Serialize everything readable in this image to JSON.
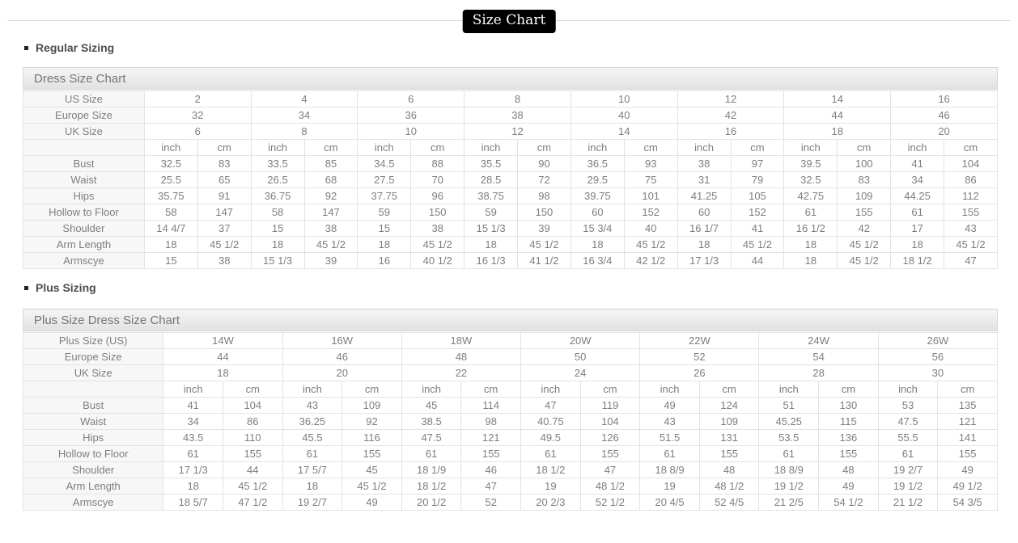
{
  "page_title": "Size Chart",
  "colors": {
    "badge_bg": "#000000",
    "badge_text": "#ffffff",
    "line_color": "#d9d9d9",
    "border_color": "#e3e3e3",
    "panel_top": "#f5f5f5",
    "panel_bottom": "#e2e2e2",
    "panel_text": "#757575",
    "cell_text": "#7e7e7e",
    "label_bg": "#f7f7f7",
    "heading_text": "#4d4d4d"
  },
  "sections": [
    {
      "heading": "Regular Sizing",
      "panel_title": "Dress Size Chart",
      "table": {
        "size_rows": [
          {
            "label": "US Size",
            "values": [
              "2",
              "4",
              "6",
              "8",
              "10",
              "12",
              "14",
              "16"
            ]
          },
          {
            "label": "Europe Size",
            "values": [
              "32",
              "34",
              "36",
              "38",
              "40",
              "42",
              "44",
              "46"
            ]
          },
          {
            "label": "UK Size",
            "values": [
              "6",
              "8",
              "10",
              "12",
              "14",
              "16",
              "18",
              "20"
            ]
          }
        ],
        "unit_labels": [
          "inch",
          "cm"
        ],
        "measurement_rows": [
          {
            "label": "Bust",
            "values": [
              "32.5",
              "83",
              "33.5",
              "85",
              "34.5",
              "88",
              "35.5",
              "90",
              "36.5",
              "93",
              "38",
              "97",
              "39.5",
              "100",
              "41",
              "104"
            ]
          },
          {
            "label": "Waist",
            "values": [
              "25.5",
              "65",
              "26.5",
              "68",
              "27.5",
              "70",
              "28.5",
              "72",
              "29.5",
              "75",
              "31",
              "79",
              "32.5",
              "83",
              "34",
              "86"
            ]
          },
          {
            "label": "Hips",
            "values": [
              "35.75",
              "91",
              "36.75",
              "92",
              "37.75",
              "96",
              "38.75",
              "98",
              "39.75",
              "101",
              "41.25",
              "105",
              "42.75",
              "109",
              "44.25",
              "112"
            ]
          },
          {
            "label": "Hollow to Floor",
            "values": [
              "58",
              "147",
              "58",
              "147",
              "59",
              "150",
              "59",
              "150",
              "60",
              "152",
              "60",
              "152",
              "61",
              "155",
              "61",
              "155"
            ]
          },
          {
            "label": "Shoulder",
            "values": [
              "14 4/7",
              "37",
              "15",
              "38",
              "15",
              "38",
              "15 1/3",
              "39",
              "15 3/4",
              "40",
              "16 1/7",
              "41",
              "16 1/2",
              "42",
              "17",
              "43"
            ]
          },
          {
            "label": "Arm Length",
            "values": [
              "18",
              "45 1/2",
              "18",
              "45 1/2",
              "18",
              "45 1/2",
              "18",
              "45 1/2",
              "18",
              "45 1/2",
              "18",
              "45 1/2",
              "18",
              "45 1/2",
              "18",
              "45 1/2"
            ]
          },
          {
            "label": "Armscye",
            "values": [
              "15",
              "38",
              "15 1/3",
              "39",
              "16",
              "40 1/2",
              "16 1/3",
              "41 1/2",
              "16 3/4",
              "42 1/2",
              "17 1/3",
              "44",
              "18",
              "45 1/2",
              "18 1/2",
              "47"
            ]
          }
        ]
      }
    },
    {
      "heading": "Plus Sizing",
      "panel_title": "Plus Size Dress Size Chart",
      "table": {
        "size_rows": [
          {
            "label": "Plus Size (US)",
            "values": [
              "14W",
              "16W",
              "18W",
              "20W",
              "22W",
              "24W",
              "26W"
            ]
          },
          {
            "label": "Europe Size",
            "values": [
              "44",
              "46",
              "48",
              "50",
              "52",
              "54",
              "56"
            ]
          },
          {
            "label": "UK Size",
            "values": [
              "18",
              "20",
              "22",
              "24",
              "26",
              "28",
              "30"
            ]
          }
        ],
        "unit_labels": [
          "inch",
          "cm"
        ],
        "measurement_rows": [
          {
            "label": "Bust",
            "values": [
              "41",
              "104",
              "43",
              "109",
              "45",
              "114",
              "47",
              "119",
              "49",
              "124",
              "51",
              "130",
              "53",
              "135"
            ]
          },
          {
            "label": "Waist",
            "values": [
              "34",
              "86",
              "36.25",
              "92",
              "38.5",
              "98",
              "40.75",
              "104",
              "43",
              "109",
              "45.25",
              "115",
              "47.5",
              "121"
            ]
          },
          {
            "label": "Hips",
            "values": [
              "43.5",
              "110",
              "45.5",
              "116",
              "47.5",
              "121",
              "49.5",
              "126",
              "51.5",
              "131",
              "53.5",
              "136",
              "55.5",
              "141"
            ]
          },
          {
            "label": "Hollow to Floor",
            "values": [
              "61",
              "155",
              "61",
              "155",
              "61",
              "155",
              "61",
              "155",
              "61",
              "155",
              "61",
              "155",
              "61",
              "155"
            ]
          },
          {
            "label": "Shoulder",
            "values": [
              "17 1/3",
              "44",
              "17 5/7",
              "45",
              "18 1/9",
              "46",
              "18 1/2",
              "47",
              "18 8/9",
              "48",
              "18 8/9",
              "48",
              "19 2/7",
              "49"
            ]
          },
          {
            "label": "Arm Length",
            "values": [
              "18",
              "45 1/2",
              "18",
              "45 1/2",
              "18 1/2",
              "47",
              "19",
              "48 1/2",
              "19",
              "48 1/2",
              "19 1/2",
              "49",
              "19 1/2",
              "49 1/2"
            ]
          },
          {
            "label": "Armscye",
            "values": [
              "18 5/7",
              "47 1/2",
              "19 2/7",
              "49",
              "20 1/2",
              "52",
              "20 2/3",
              "52 1/2",
              "20 4/5",
              "52 4/5",
              "21 2/5",
              "54 1/2",
              "21 1/2",
              "54 3/5"
            ]
          }
        ]
      }
    }
  ]
}
